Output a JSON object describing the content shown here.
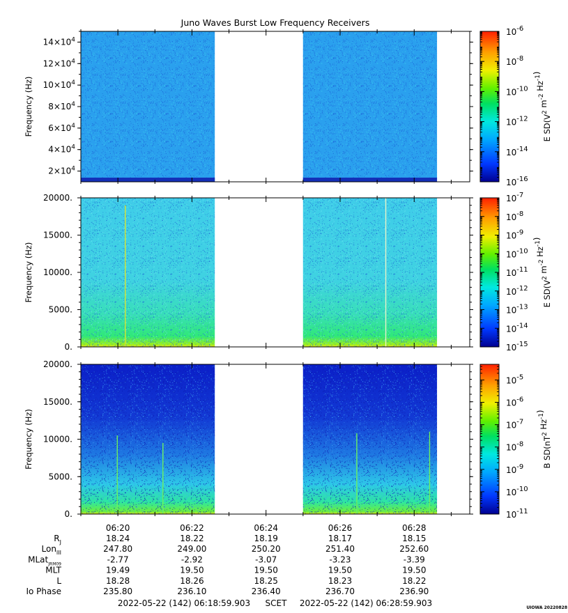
{
  "chart_data": {
    "type": "heatmap",
    "title": "Juno Waves Burst Low Frequency Receivers",
    "x_axis": {
      "ticks": [
        "06:20",
        "06:22",
        "06:24",
        "06:26",
        "06:28"
      ],
      "start": "2022-05-22 (142) 06:18:59.903",
      "end": "2022-05-22 (142) 06:28:59.903",
      "label": "SCET"
    },
    "data_intervals": [
      {
        "start": "06:18:59.903",
        "end": "06:22:37"
      },
      {
        "start": "06:24:59.903",
        "end": "06:28:37"
      }
    ],
    "colorbar_scale": "rainbow",
    "panels": [
      {
        "ylabel": "Frequency (Hz)",
        "ylim": [
          10000,
          150000
        ],
        "y_tick_mantissas": [
          "14",
          "12",
          "10",
          "8",
          "6",
          "4",
          "2"
        ],
        "y_tick_power": "4",
        "colorbar_label": "E SD(V2 m-2 Hz-1)",
        "colorbar_range_exp": [
          -16,
          -6
        ],
        "colorbar_tick_exps": [
          "-6",
          "-8",
          "-10",
          "-12",
          "-14",
          "-16"
        ],
        "dominant_color": "#2aa0ee",
        "bottom_band_color": "#1430b8",
        "texture_colors": [
          "#1b64d8",
          "#38c6ef"
        ],
        "texture_density": 0.55,
        "spikes": []
      },
      {
        "ylabel": "Frequency (Hz)",
        "ylim": [
          0,
          20000
        ],
        "y_ticks": [
          "20000.",
          "15000.",
          "10000.",
          "5000.",
          "0."
        ],
        "colorbar_label": "E SD(V2 m-2 Hz-1)",
        "colorbar_range_exp": [
          -15,
          -7
        ],
        "colorbar_tick_exps": [
          "-7",
          "-8",
          "-9",
          "-10",
          "-11",
          "-12",
          "-13",
          "-14",
          "-15"
        ],
        "dominant_color": "#3fcde9",
        "gradient_stops": [
          [
            "#3fcde9",
            0.0
          ],
          [
            "#3fd2e2",
            0.55
          ],
          [
            "#38dfb8",
            0.78
          ],
          [
            "#30e878",
            0.93
          ],
          [
            "#9ff11a",
            0.985
          ],
          [
            "#e8e020",
            1.0
          ]
        ],
        "texture_colors": [
          "#1f78d6",
          "#6fe6f0"
        ],
        "texture_density": 0.45,
        "spikes": [
          {
            "time": "06:20:12",
            "color": "#d7e330",
            "ylim_top": 19000
          },
          {
            "time": "06:27:14",
            "color": "#e8f2c8",
            "ylim_top": 20000
          }
        ]
      },
      {
        "ylabel": "Frequency (Hz)",
        "ylim": [
          0,
          20000
        ],
        "y_ticks": [
          "20000.",
          "15000.",
          "10000.",
          "5000.",
          "0."
        ],
        "colorbar_label": "B SD(nT2 Hz-1)",
        "colorbar_range_exp": [
          -11,
          -4.3
        ],
        "colorbar_tick_exps": [
          "-5",
          "-6",
          "-7",
          "-8",
          "-9",
          "-10",
          "-11"
        ],
        "dominant_color": "#2054d8",
        "gradient_stops": [
          [
            "#0b1fc8",
            0.0
          ],
          [
            "#1239d4",
            0.35
          ],
          [
            "#1e78e2",
            0.6
          ],
          [
            "#2dc8e8",
            0.8
          ],
          [
            "#2ee6a0",
            0.92
          ],
          [
            "#6ef03a",
            0.985
          ],
          [
            "#e8e020",
            1.0
          ]
        ],
        "texture_colors": [
          "#0a18b0",
          "#3a9ef0"
        ],
        "texture_density": 0.5,
        "spikes": [
          {
            "time": "06:19:59",
            "color": "#6cf060",
            "ylim_top": 10500
          },
          {
            "time": "06:21:13",
            "color": "#6cf060",
            "ylim_top": 9500
          },
          {
            "time": "06:26:27",
            "color": "#6cf060",
            "ylim_top": 10800
          },
          {
            "time": "06:28:25",
            "color": "#6cf060",
            "ylim_top": 11000
          }
        ]
      }
    ],
    "ephemeris": {
      "labels": [
        "R",
        "Lon",
        "MLat",
        "MLT",
        "L",
        "Io Phase"
      ],
      "label_subscripts": [
        "J",
        "III",
        "JRM09",
        "",
        "",
        ""
      ],
      "rows": [
        [
          "18.24",
          "18.22",
          "18.19",
          "18.17",
          "18.15"
        ],
        [
          "247.80",
          "249.00",
          "250.20",
          "251.40",
          "252.60"
        ],
        [
          "-2.77",
          "-2.92",
          "-3.07",
          "-3.23",
          "-3.39"
        ],
        [
          "19.49",
          "19.50",
          "19.50",
          "19.50",
          "19.50"
        ],
        [
          "18.28",
          "18.26",
          "18.25",
          "18.23",
          "18.22"
        ],
        [
          "235.80",
          "236.10",
          "236.40",
          "236.70",
          "236.90"
        ]
      ]
    },
    "footer_stamp": "UIOWA 20220828"
  }
}
